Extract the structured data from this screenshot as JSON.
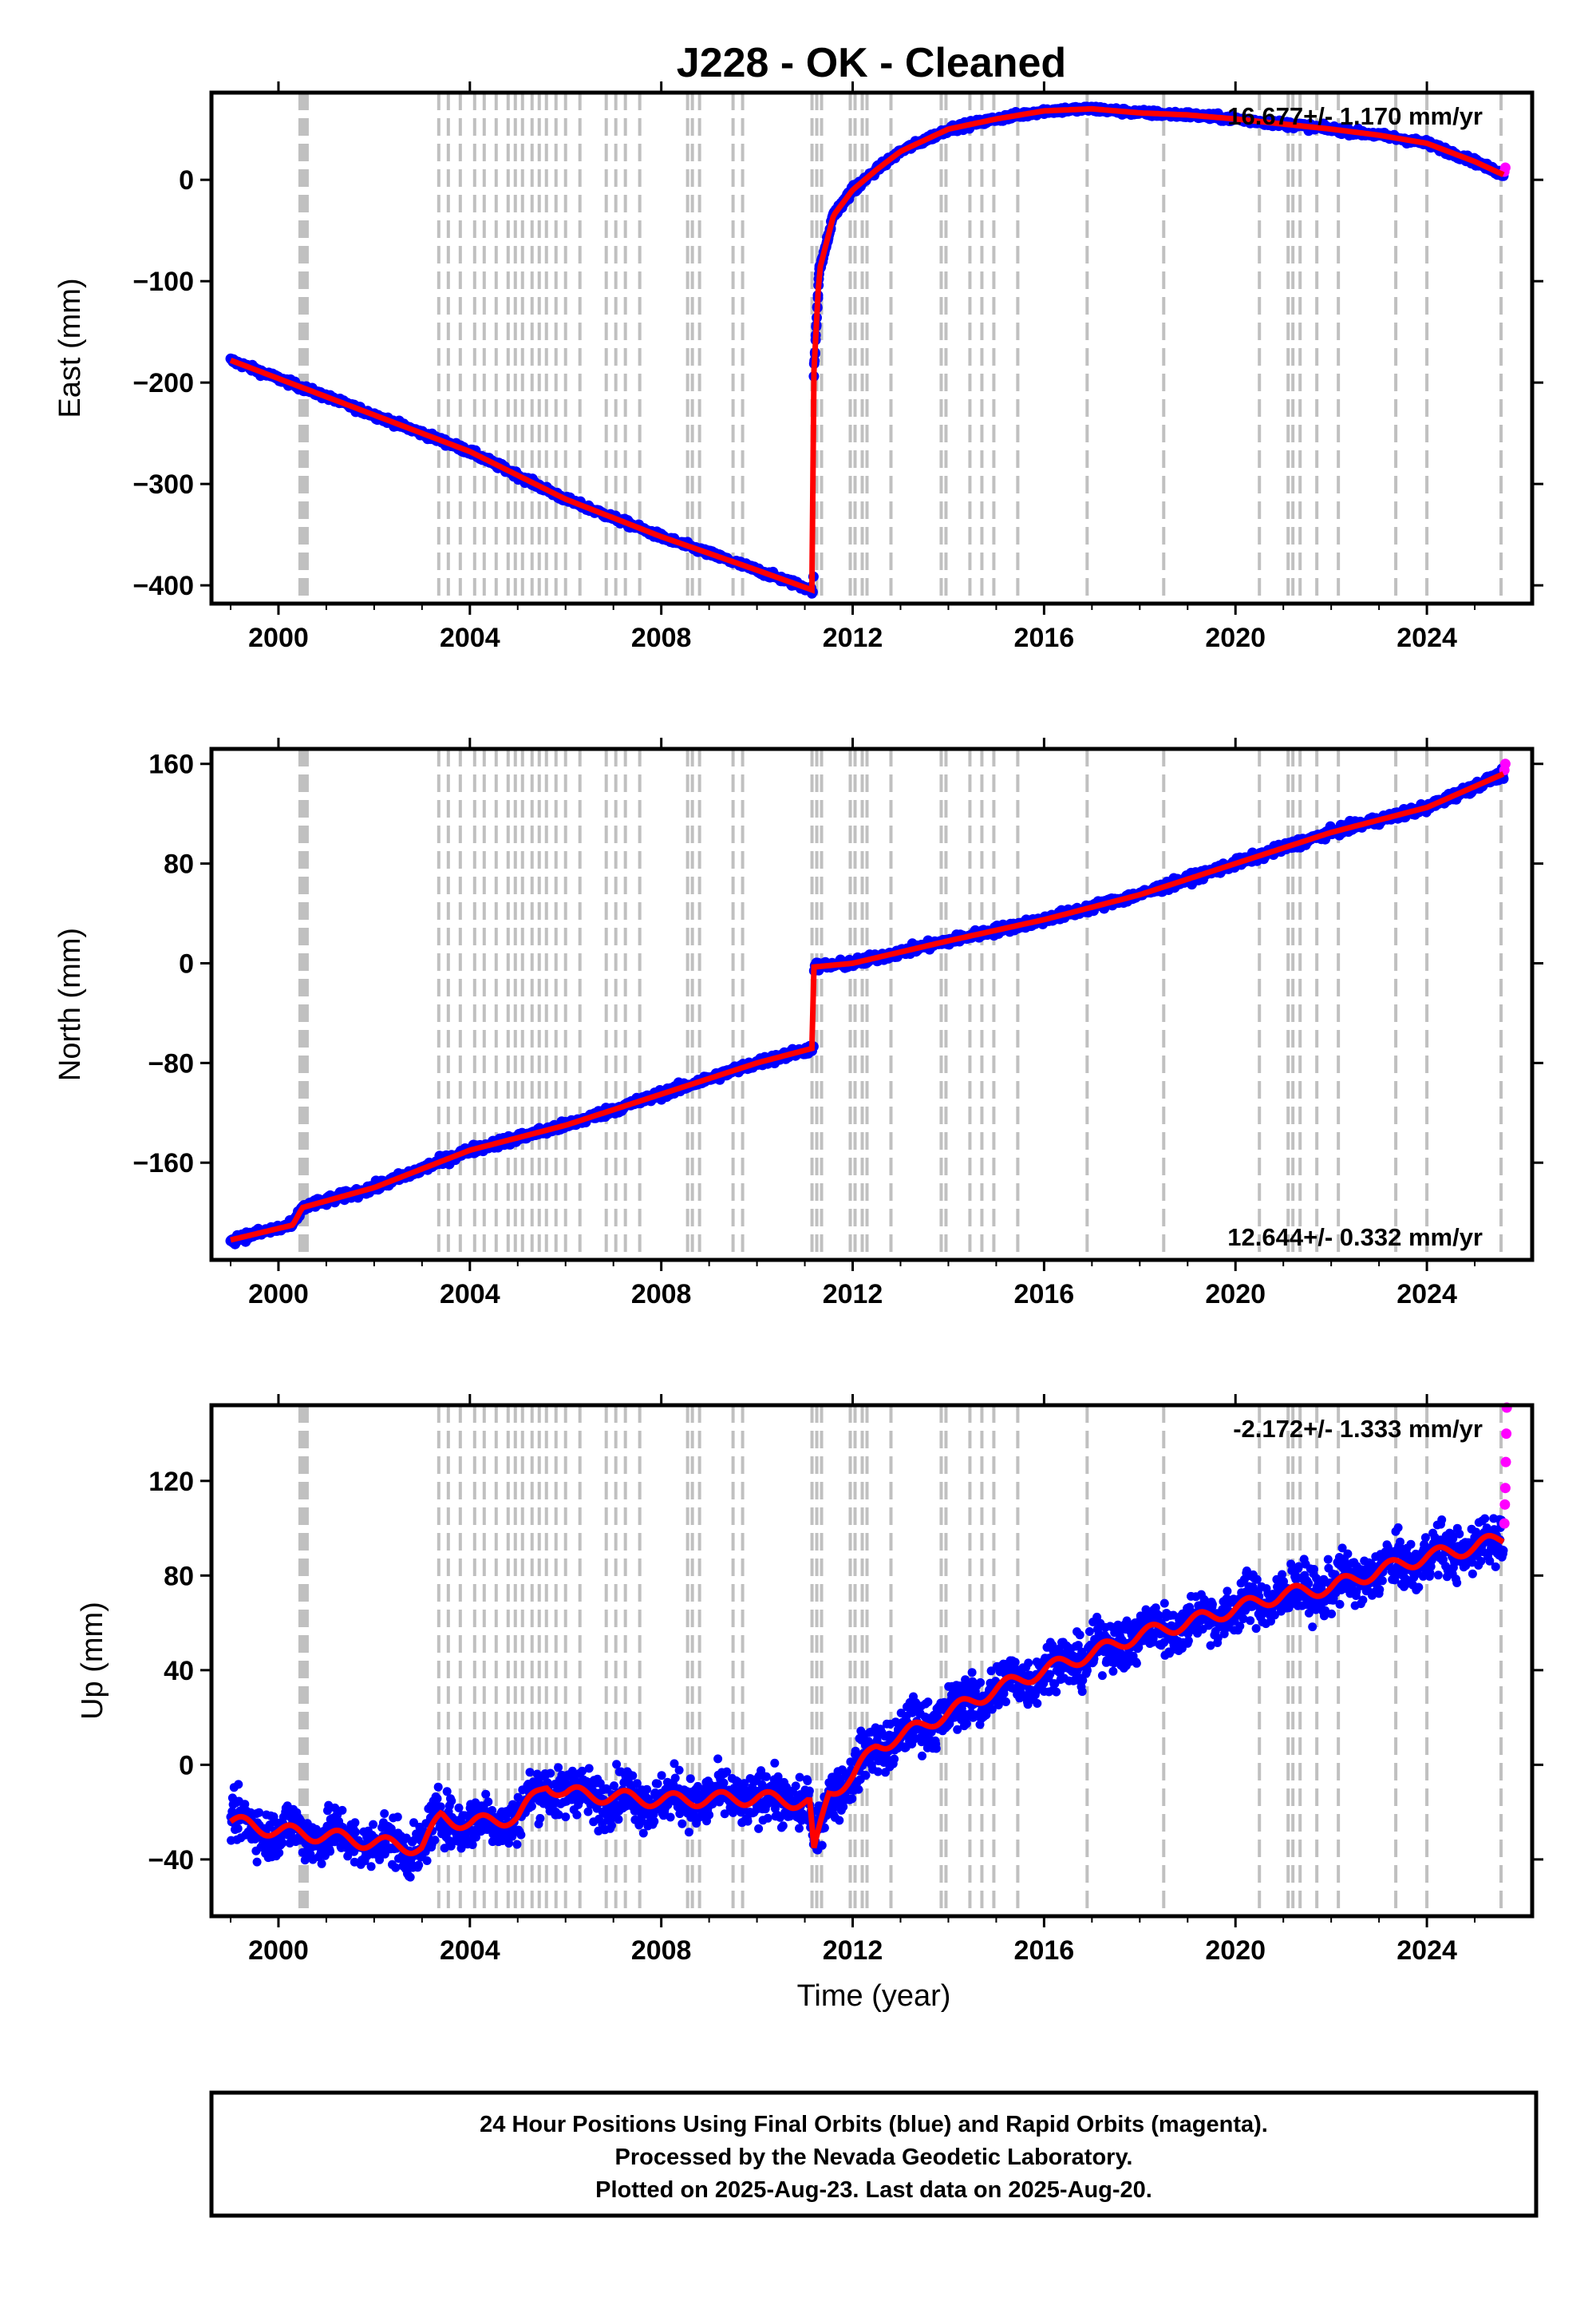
{
  "title": "J228  - OK - Cleaned",
  "footer": {
    "line1": "24 Hour Positions Using Final Orbits (blue) and Rapid Orbits (magenta).",
    "line2": "Processed by the Nevada Geodetic Laboratory.",
    "line3": "Plotted on 2025-Aug-23. Last data on 2025-Aug-20."
  },
  "colors": {
    "final": "#0000ff",
    "rapid": "#ff00ff",
    "model": "#ff0000",
    "breaks": "#c0c0c0"
  },
  "chart_data": [
    {
      "type": "scatter",
      "component": "East",
      "ylabel": "East (mm)",
      "xlabel": "",
      "xlim": [
        1998.6,
        2026.2
      ],
      "ylim": [
        -418,
        86
      ],
      "xticks": [
        2000,
        2004,
        2008,
        2012,
        2016,
        2020,
        2024
      ],
      "yticks": [
        -400,
        -300,
        -200,
        -100,
        0
      ],
      "rate_text": "16.677+/- 1.170 mm/yr",
      "rate_position": "top-right",
      "series": [
        {
          "color": "final",
          "points": [
            [
              1999.0,
              -178
            ],
            [
              2000.5,
              -205
            ],
            [
              2002.0,
              -232
            ],
            [
              2004.0,
              -268
            ],
            [
              2006.0,
              -315
            ],
            [
              2008.0,
              -352
            ],
            [
              2010.0,
              -385
            ],
            [
              2011.18,
              -405
            ],
            [
              2011.19,
              -190
            ],
            [
              2011.3,
              -90
            ],
            [
              2011.6,
              -35
            ],
            [
              2012.0,
              -10
            ],
            [
              2012.5,
              10
            ],
            [
              2013.0,
              28
            ],
            [
              2014.0,
              50
            ],
            [
              2015.0,
              60
            ],
            [
              2016.0,
              68
            ],
            [
              2017.0,
              70
            ],
            [
              2018.0,
              66
            ],
            [
              2019.0,
              64
            ],
            [
              2020.0,
              60
            ],
            [
              2021.0,
              55
            ],
            [
              2022.0,
              50
            ],
            [
              2023.0,
              44
            ],
            [
              2024.0,
              36
            ],
            [
              2025.0,
              18
            ],
            [
              2025.6,
              5
            ]
          ]
        },
        {
          "color": "rapid",
          "points": [
            [
              2025.62,
              8
            ],
            [
              2025.64,
              12
            ]
          ]
        }
      ]
    },
    {
      "type": "scatter",
      "component": "North",
      "ylabel": "North (mm)",
      "xlabel": "",
      "xlim": [
        1998.6,
        2026.2
      ],
      "ylim": [
        -238,
        172
      ],
      "xticks": [
        2000,
        2004,
        2008,
        2012,
        2016,
        2020,
        2024
      ],
      "yticks": [
        -160,
        -80,
        0,
        80,
        160
      ],
      "rate_text": "12.644+/- 0.332 mm/yr",
      "rate_position": "bottom-right",
      "series": [
        {
          "color": "final",
          "points": [
            [
              1999.0,
              -222
            ],
            [
              2000.3,
              -210
            ],
            [
              2000.5,
              -196
            ],
            [
              2002.0,
              -180
            ],
            [
              2004.0,
              -150
            ],
            [
              2006.0,
              -130
            ],
            [
              2008.0,
              -105
            ],
            [
              2010.0,
              -80
            ],
            [
              2011.18,
              -68
            ],
            [
              2011.19,
              -3
            ],
            [
              2012.0,
              0
            ],
            [
              2014.0,
              18
            ],
            [
              2016.0,
              35
            ],
            [
              2018.0,
              55
            ],
            [
              2020.0,
              80
            ],
            [
              2022.0,
              105
            ],
            [
              2024.0,
              125
            ],
            [
              2025.6,
              152
            ]
          ]
        },
        {
          "color": "rapid",
          "points": [
            [
              2025.62,
              155
            ],
            [
              2025.64,
              160
            ]
          ]
        }
      ]
    },
    {
      "type": "scatter",
      "component": "Up",
      "ylabel": "Up (mm)",
      "xlabel": "Time (year)",
      "xlim": [
        1998.6,
        2026.2
      ],
      "ylim": [
        -64,
        152
      ],
      "xticks": [
        2000,
        2004,
        2008,
        2012,
        2016,
        2020,
        2024
      ],
      "yticks": [
        -40,
        0,
        40,
        80,
        120
      ],
      "rate_text": "-2.172+/- 1.333 mm/yr",
      "rate_position": "top-right",
      "series": [
        {
          "color": "final",
          "points": [
            [
              1999.0,
              -24
            ],
            [
              2000.0,
              -28
            ],
            [
              2001.0,
              -30
            ],
            [
              2002.0,
              -33
            ],
            [
              2003.0,
              -35
            ],
            [
              2003.4,
              -22
            ],
            [
              2004.0,
              -25
            ],
            [
              2005.0,
              -22
            ],
            [
              2005.6,
              -8
            ],
            [
              2006.0,
              -12
            ],
            [
              2008.0,
              -15
            ],
            [
              2010.0,
              -14
            ],
            [
              2011.1,
              -16
            ],
            [
              2011.19,
              -38
            ],
            [
              2011.5,
              -12
            ],
            [
              2012.0,
              -5
            ],
            [
              2012.5,
              8
            ],
            [
              2013.0,
              12
            ],
            [
              2014.0,
              22
            ],
            [
              2015.0,
              32
            ],
            [
              2016.0,
              40
            ],
            [
              2017.0,
              47
            ],
            [
              2018.0,
              55
            ],
            [
              2019.0,
              60
            ],
            [
              2020.0,
              66
            ],
            [
              2021.0,
              72
            ],
            [
              2022.0,
              75
            ],
            [
              2023.0,
              82
            ],
            [
              2024.0,
              88
            ],
            [
              2025.0,
              92
            ],
            [
              2025.6,
              96
            ]
          ]
        },
        {
          "color": "rapid",
          "points": [
            [
              2025.62,
              102
            ],
            [
              2025.63,
              110
            ],
            [
              2025.64,
              117
            ],
            [
              2025.65,
              128
            ],
            [
              2025.66,
              140
            ],
            [
              2025.67,
              151
            ]
          ]
        }
      ]
    }
  ],
  "break_lines": [
    2000.45,
    2000.5,
    2000.55,
    2000.6,
    2003.35,
    2003.55,
    2003.8,
    2004.1,
    2004.3,
    2004.55,
    2004.8,
    2004.95,
    2005.1,
    2005.3,
    2005.45,
    2005.6,
    2005.8,
    2006.0,
    2006.3,
    2006.85,
    2007.05,
    2007.25,
    2007.55,
    2008.55,
    2008.65,
    2008.8,
    2009.5,
    2009.7,
    2011.15,
    2011.25,
    2011.35,
    2011.95,
    2012.05,
    2012.2,
    2012.3,
    2012.8,
    2013.85,
    2013.95,
    2014.45,
    2014.7,
    2014.95,
    2015.45,
    2016.9,
    2018.5,
    2020.5,
    2021.1,
    2021.2,
    2021.35,
    2021.7,
    2022.15,
    2023.35,
    2024.0,
    2025.55
  ],
  "model_offsets": [
    2000.5,
    2003.4,
    2005.6,
    2011.19
  ]
}
